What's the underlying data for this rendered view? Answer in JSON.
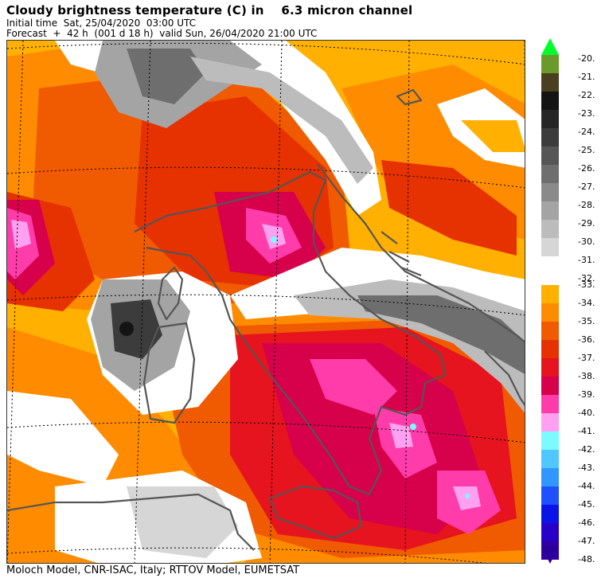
{
  "header": {
    "title": "Cloudy brightness temperature (C) in    6.3 micron channel",
    "initial_time": "Initial time  Sat, 25/04/2020  03:00 UTC",
    "forecast": "Forecast  +  42 h  (001 d 18 h)  valid Sun, 26/04/2020 21:00 UTC"
  },
  "footer": {
    "credits": "Moloch Model, CNR-ISAC, Italy; RTTOV Model, EUMETSAT"
  },
  "map": {
    "background_color": "#ffb000",
    "coastline_color": "#555555",
    "graticule_color": "#000000"
  },
  "legend": {
    "upper": [
      {
        "label": "-20.",
        "color": "#00ff2a"
      },
      {
        "label": "-21.",
        "color": "#6a9a2a"
      },
      {
        "label": "-22.",
        "color": "#4a4020"
      },
      {
        "label": "-23.",
        "color": "#141414"
      },
      {
        "label": "-24.",
        "color": "#262626"
      },
      {
        "label": "-25.",
        "color": "#3c3c3c"
      },
      {
        "label": "-26.",
        "color": "#565656"
      },
      {
        "label": "-27.",
        "color": "#6e6e6e"
      },
      {
        "label": "-28.",
        "color": "#8a8a8a"
      },
      {
        "label": "-29.",
        "color": "#a4a4a4"
      },
      {
        "label": "-30.",
        "color": "#bcbcbc"
      },
      {
        "label": "-31.",
        "color": "#d6d6d6"
      },
      {
        "label": "-32.",
        "color": "#ffffff"
      }
    ],
    "lower": [
      {
        "label": "-33.",
        "color": "#ffb000"
      },
      {
        "label": "-34.",
        "color": "#ff8c00"
      },
      {
        "label": "-35.",
        "color": "#f05a00"
      },
      {
        "label": "-36.",
        "color": "#e63200"
      },
      {
        "label": "-37.",
        "color": "#e6141e"
      },
      {
        "label": "-38.",
        "color": "#d7004b"
      },
      {
        "label": "-39.",
        "color": "#ff3caa"
      },
      {
        "label": "-40.",
        "color": "#ffa0f0"
      },
      {
        "label": "-41.",
        "color": "#7cfaff"
      },
      {
        "label": "-42.",
        "color": "#50c8ff"
      },
      {
        "label": "-43.",
        "color": "#3296ff"
      },
      {
        "label": "-44.",
        "color": "#1e50ff"
      },
      {
        "label": "-45.",
        "color": "#0a14e6"
      },
      {
        "label": "-46.",
        "color": "#2800c8"
      },
      {
        "label": "-47.",
        "color": "#3200a0"
      },
      {
        "label": "-48.",
        "color": "#2a009a"
      }
    ]
  }
}
